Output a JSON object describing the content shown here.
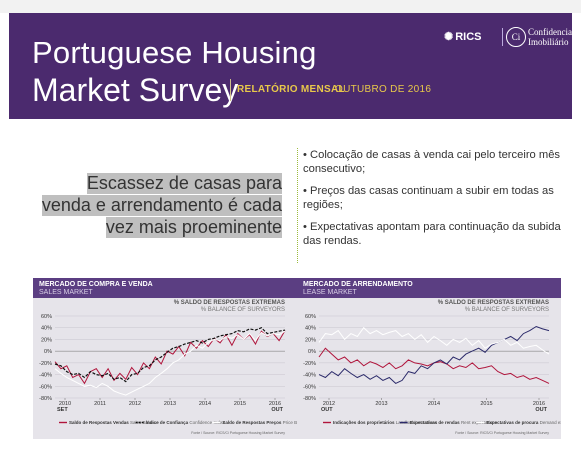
{
  "header": {
    "title_line1": "Portuguese Housing",
    "title_line2": "Market Survey",
    "report_label": "RELATÓRIO MENSAL",
    "report_date": "OUTUBRO DE 2016",
    "logo_rics": "RICS",
    "logo_ci_mark": "Ci",
    "logo_ci_line1": "Confidencial",
    "logo_ci_line2": "Imobiliário"
  },
  "headline": {
    "line1": "Escassez de casas para",
    "line2": "venda e arrendamento é cada",
    "line3": "vez mais proeminente"
  },
  "bullets": [
    "• Colocação de casas à venda cai pelo terceiro mês consecutivo;",
    "• Preços das casas continuam a subir em todas as regiões;",
    "• Expectativas apontam para continuação da subida das rendas."
  ],
  "colors": {
    "banner": "#4b2a6e",
    "accent_gold": "#e8c84a",
    "chart_header": "#5b3e82",
    "series_red": "#b0153c",
    "series_black": "#111111",
    "series_white": "#ffffff",
    "series_navy": "#2b2a6a",
    "bullet_rule": "#9bbb3b"
  },
  "chart_data": [
    {
      "type": "line",
      "title": "MERCADO DE COMPRA E VENDA",
      "subtitle": "SALES MARKET",
      "ylabel": "% SALDO DE RESPOSTAS EXTREMAS",
      "ylabel2": "% BALANCE OF SURVEYORS",
      "ylim": [
        -80,
        60
      ],
      "yticks": [
        "60%",
        "40%",
        "20%",
        "0%",
        "-20%",
        "-40%",
        "-60%",
        "-80%"
      ],
      "xticks": [
        "2010",
        "2011",
        "2012",
        "2013",
        "2014",
        "2015",
        "2016"
      ],
      "xlabel_left": "SET",
      "xlabel_right": "OUT",
      "source": "Fonte / Source: RICS/Ci Portuguese Housing Market Survey",
      "series": [
        {
          "name": "Saldo de Respostas Vendas",
          "name_en": "Sales Balance",
          "style": "red",
          "values": [
            -18,
            -30,
            -25,
            -45,
            -40,
            -55,
            -35,
            -30,
            -45,
            -30,
            -50,
            -38,
            -48,
            -28,
            -40,
            -20,
            -30,
            -10,
            -22,
            0,
            -5,
            8,
            -8,
            15,
            5,
            18,
            8,
            22,
            14,
            28,
            10,
            30,
            20,
            28,
            12,
            34,
            25,
            30,
            18,
            35
          ]
        },
        {
          "name": "Índice de Confiança",
          "name_en": "Confidence Index",
          "style": "black-dashed",
          "values": [
            -22,
            -25,
            -35,
            -40,
            -38,
            -45,
            -35,
            -40,
            -42,
            -38,
            -48,
            -45,
            -52,
            -40,
            -38,
            -28,
            -25,
            -15,
            -10,
            -2,
            5,
            8,
            12,
            15,
            18,
            14,
            20,
            22,
            26,
            28,
            30,
            35,
            33,
            38,
            36,
            40,
            30,
            32,
            34,
            36
          ]
        },
        {
          "name": "Saldo de Respostas Preços",
          "name_en": "Price Balance",
          "style": "white",
          "values": [
            -30,
            -38,
            -45,
            -50,
            -55,
            -60,
            -58,
            -62,
            -55,
            -60,
            -68,
            -72,
            -75,
            -70,
            -65,
            -60,
            -55,
            -45,
            -38,
            -30,
            -20,
            -15,
            -5,
            0,
            10,
            5,
            15,
            20,
            18,
            25,
            22,
            28,
            20,
            30,
            18,
            32,
            26,
            30,
            28,
            34
          ]
        }
      ]
    },
    {
      "type": "line",
      "title": "MERCADO DE ARRENDAMENTO",
      "subtitle": "LEASE MARKET",
      "ylabel": "% SALDO DE RESPOSTAS EXTREMAS",
      "ylabel2": "% BALANCE OF SURVEYORS",
      "ylim": [
        -80,
        60
      ],
      "yticks": [
        "60%",
        "40%",
        "20%",
        "0%",
        "-20%",
        "-40%",
        "-60%",
        "-80%"
      ],
      "xticks": [
        "2012",
        "2013",
        "2014",
        "2015",
        "2016"
      ],
      "xlabel_left": "OUT",
      "xlabel_right": "OUT",
      "source": "Fonte / Source: RICS/Ci Portuguese Housing Market Survey",
      "series": [
        {
          "name": "Indicações dos proprietários",
          "name_en": "Landlord instructions",
          "style": "red",
          "values": [
            -10,
            5,
            -5,
            -15,
            -10,
            -20,
            -15,
            -25,
            -18,
            -22,
            -28,
            -20,
            -30,
            -25,
            -15,
            -20,
            -22,
            -25,
            -20,
            -18,
            -22,
            -30,
            -25,
            -28,
            -20,
            -30,
            -28,
            -25,
            -35,
            -40,
            -38,
            -45,
            -42,
            -48,
            -45,
            -50,
            -55
          ]
        },
        {
          "name": "Expectativas de rendas",
          "name_en": "Rent expectations",
          "style": "navy",
          "values": [
            -40,
            -45,
            -35,
            -42,
            -30,
            -38,
            -45,
            -40,
            -48,
            -42,
            -50,
            -45,
            -55,
            -50,
            -35,
            -38,
            -25,
            -30,
            -20,
            -15,
            -22,
            -10,
            -15,
            -5,
            0,
            5,
            -2,
            10,
            15,
            20,
            25,
            18,
            30,
            35,
            42,
            38,
            35
          ]
        },
        {
          "name": "Expectativas de procura",
          "name_en": "Demand expectations",
          "style": "white",
          "values": [
            15,
            30,
            28,
            35,
            20,
            30,
            25,
            40,
            30,
            35,
            28,
            32,
            35,
            25,
            30,
            20,
            28,
            15,
            25,
            18,
            10,
            20,
            15,
            22,
            10,
            18,
            5,
            12,
            15,
            20,
            10,
            15,
            5,
            8,
            10,
            2,
            -5
          ]
        }
      ]
    }
  ]
}
